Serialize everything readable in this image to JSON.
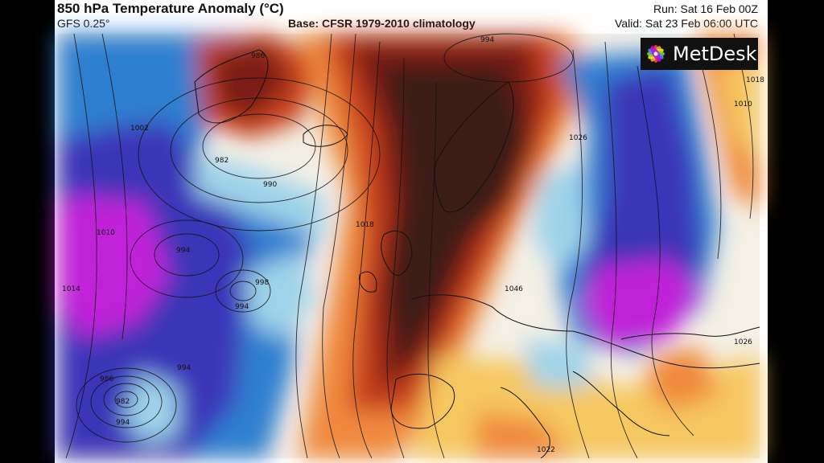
{
  "header": {
    "title": "850 hPa Temperature Anomaly (°C)",
    "model": "GFS 0.25°",
    "base": "Base: CFSR 1979-2010 climatology",
    "run": "Run: Sat 16 Feb 00Z",
    "valid": "Valid: Sat 23 Feb 06:00 UTC"
  },
  "logo": {
    "text": "MetDesk",
    "icon": "metdesk-logo-icon"
  },
  "isobar_labels": [
    "994",
    "986",
    "982",
    "990",
    "994",
    "998",
    "994",
    "1010",
    "1014",
    "1002",
    "1018",
    "1026",
    "1018",
    "1010",
    "1046",
    "1026",
    "1022",
    "994",
    "986",
    "982",
    "994"
  ],
  "colors": {
    "extreme_warm": "#3a1a14",
    "very_warm": "#7a1f12",
    "warm": "#c8401c",
    "mild_warm": "#f08a3c",
    "slight_warm": "#f6c860",
    "neutral": "#f4f0e6",
    "slight_cold": "#9fd3ea",
    "cold": "#2f7fd0",
    "very_cold": "#3a34b8",
    "extreme_cold": "#c020d8"
  }
}
